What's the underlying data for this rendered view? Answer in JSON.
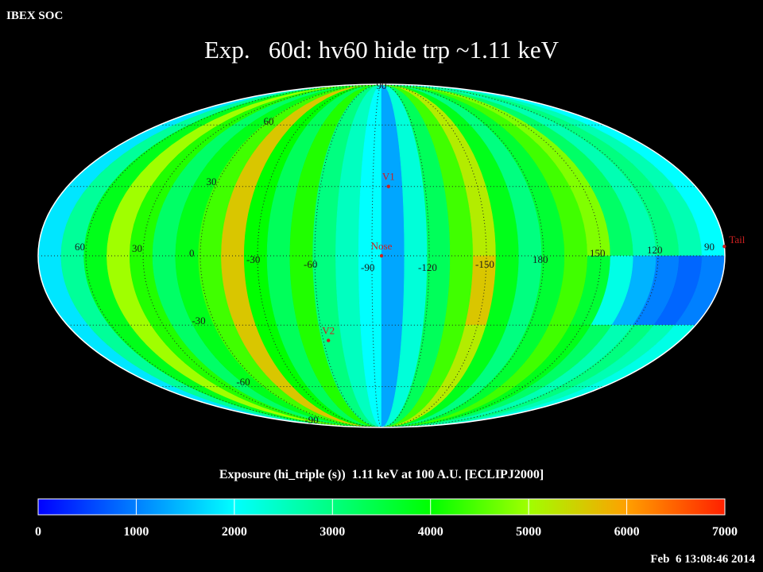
{
  "header": {
    "label": "IBEX SOC",
    "title": "Exp.   60d: hv60 hide trp ~1.11 keV"
  },
  "map": {
    "projection": "mollweide",
    "center_lon": -95,
    "lat_edges": [
      90,
      0,
      -30,
      -90
    ],
    "strips": [
      [
        1800,
        1800,
        1800
      ],
      [
        2800,
        2800,
        2800
      ],
      [
        3800,
        3800,
        3800
      ],
      [
        5000,
        5000,
        5000
      ],
      [
        4200,
        4200,
        4200
      ],
      [
        3200,
        3200,
        3200
      ],
      [
        3800,
        3800,
        3800
      ],
      [
        4400,
        4400,
        4400
      ],
      [
        5600,
        5600,
        5600
      ],
      [
        4000,
        4000,
        4000
      ],
      [
        3300,
        3300,
        3300
      ],
      [
        4200,
        4200,
        4200
      ],
      [
        3000,
        3000,
        3000
      ],
      [
        2500,
        2500,
        2500
      ],
      [
        2000,
        2000,
        2000
      ],
      [
        1300,
        1300,
        1300
      ],
      [
        2300,
        2300,
        2300
      ],
      [
        3300,
        3300,
        3300
      ],
      [
        4400,
        4400,
        4400
      ],
      [
        5200,
        5600,
        5200
      ],
      [
        3800,
        3800,
        3800
      ],
      [
        3000,
        3000,
        3000
      ],
      [
        3600,
        3600,
        3600
      ],
      [
        4400,
        4400,
        4400
      ],
      [
        4800,
        3600,
        3800
      ],
      [
        3200,
        2200,
        3200
      ],
      [
        2600,
        1400,
        2600
      ],
      [
        3000,
        1000,
        3000
      ],
      [
        2600,
        800,
        2600
      ],
      [
        2000,
        1000,
        2200
      ]
    ],
    "lon_labels": [
      60,
      30,
      0,
      -30,
      -60,
      -90,
      -120,
      -150,
      180,
      150,
      120,
      90
    ],
    "lat_labels": [
      90,
      60,
      30,
      -30,
      -60,
      -90
    ],
    "markers": [
      {
        "label": "V1",
        "lon": -99,
        "lat": 30
      },
      {
        "label": "Nose",
        "lon": -95,
        "lat": 0
      },
      {
        "label": "V2",
        "lon": -63,
        "lat": -37
      },
      {
        "label": "Tail",
        "lon": 85,
        "lat": 4
      }
    ],
    "marker_color": "#cc2020"
  },
  "colorbar": {
    "title": "Exposure (hi_triple (s))  1.11 keV at 100 A.U. [ECLIPJ2000]",
    "clim": [
      0,
      7000
    ],
    "ticks": [
      0,
      1000,
      2000,
      3000,
      4000,
      5000,
      6000,
      7000
    ],
    "colormap": [
      "#0000ff",
      "#0080ff",
      "#00ffff",
      "#00ff80",
      "#00ff00",
      "#a0ff00",
      "#ffa000",
      "#ff2000"
    ]
  },
  "footer": {
    "timestamp": "Feb  6 13:08:46 2014"
  }
}
